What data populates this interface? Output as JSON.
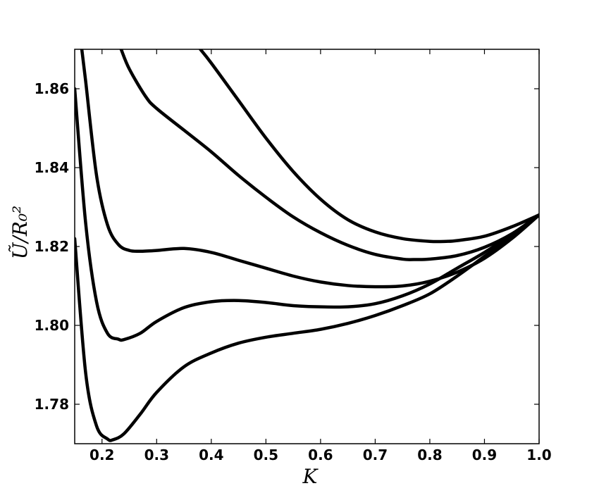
{
  "chart_data": {
    "type": "line",
    "title": "",
    "xlabel": "K",
    "ylabel": "Ũ/R₀²",
    "xlim": [
      0.15,
      1.0
    ],
    "ylim": [
      1.77,
      1.87
    ],
    "xticks": [
      0.2,
      0.3,
      0.4,
      0.5,
      0.6,
      0.7,
      0.8,
      0.9,
      1.0
    ],
    "xtick_labels": [
      "0.2",
      "0.3",
      "0.4",
      "0.5",
      "0.6",
      "0.7",
      "0.8",
      "0.9",
      "1.0"
    ],
    "yticks": [
      1.78,
      1.8,
      1.82,
      1.84,
      1.86
    ],
    "ytick_labels": [
      "1.78",
      "1.80",
      "1.82",
      "1.84",
      "1.86"
    ],
    "grid": false,
    "legend": false,
    "series": [
      {
        "x": [
          0.15,
          0.17,
          0.19,
          0.21,
          0.22,
          0.24,
          0.27,
          0.3,
          0.35,
          0.4,
          0.45,
          0.5,
          0.55,
          0.6,
          0.65,
          0.7,
          0.75,
          0.8,
          0.85,
          0.9,
          0.95,
          1.0
        ],
        "y": [
          1.822,
          1.788,
          1.7745,
          1.7712,
          1.771,
          1.7725,
          1.7775,
          1.783,
          1.7895,
          1.793,
          1.7955,
          1.797,
          1.798,
          1.799,
          1.8005,
          1.8025,
          1.805,
          1.808,
          1.8125,
          1.8175,
          1.8225,
          1.828
        ]
      },
      {
        "x": [
          0.15,
          0.17,
          0.19,
          0.21,
          0.23,
          0.24,
          0.27,
          0.3,
          0.35,
          0.4,
          0.45,
          0.5,
          0.55,
          0.6,
          0.65,
          0.7,
          0.75,
          0.8,
          0.85,
          0.9,
          0.95,
          1.0
        ],
        "y": [
          1.86,
          1.826,
          1.806,
          1.798,
          1.7965,
          1.7964,
          1.798,
          1.801,
          1.8045,
          1.806,
          1.8063,
          1.8058,
          1.805,
          1.8047,
          1.8047,
          1.8055,
          1.8075,
          1.8105,
          1.8145,
          1.8185,
          1.823,
          1.828
        ]
      },
      {
        "x": [
          0.163,
          0.17,
          0.19,
          0.21,
          0.23,
          0.25,
          0.27,
          0.3,
          0.35,
          0.4,
          0.45,
          0.5,
          0.55,
          0.6,
          0.65,
          0.7,
          0.75,
          0.8,
          0.85,
          0.9,
          0.95,
          1.0
        ],
        "y": [
          1.87,
          1.862,
          1.838,
          1.8255,
          1.8205,
          1.819,
          1.8188,
          1.819,
          1.8195,
          1.8185,
          1.8165,
          1.8145,
          1.8125,
          1.811,
          1.8101,
          1.8098,
          1.81,
          1.8112,
          1.8135,
          1.817,
          1.822,
          1.828
        ]
      },
      {
        "x": [
          0.235,
          0.25,
          0.28,
          0.3,
          0.35,
          0.4,
          0.45,
          0.5,
          0.55,
          0.6,
          0.65,
          0.7,
          0.75,
          0.77,
          0.8,
          0.85,
          0.9,
          0.95,
          1.0
        ],
        "y": [
          1.87,
          1.865,
          1.858,
          1.855,
          1.8495,
          1.844,
          1.838,
          1.8325,
          1.8275,
          1.8235,
          1.8203,
          1.818,
          1.8168,
          1.8167,
          1.8168,
          1.8177,
          1.8198,
          1.8232,
          1.828
        ]
      },
      {
        "x": [
          0.38,
          0.4,
          0.45,
          0.5,
          0.55,
          0.6,
          0.65,
          0.7,
          0.75,
          0.8,
          0.83,
          0.85,
          0.9,
          0.95,
          1.0
        ],
        "y": [
          1.87,
          1.8665,
          1.857,
          1.8475,
          1.839,
          1.832,
          1.8268,
          1.8237,
          1.822,
          1.8213,
          1.8213,
          1.8215,
          1.8226,
          1.825,
          1.828
        ]
      }
    ]
  }
}
